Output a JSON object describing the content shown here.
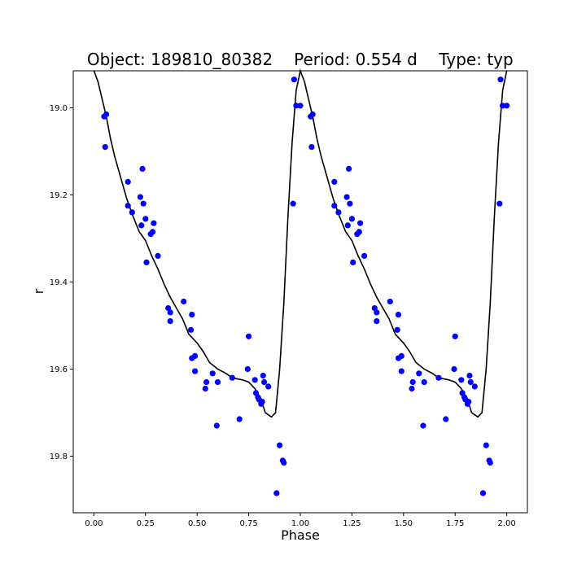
{
  "chart_data": {
    "type": "scatter",
    "title_parts": [
      "Object: 189810_80382",
      "Period: 0.554 d",
      "Type: typ"
    ],
    "xlabel": "Phase",
    "ylabel": "r",
    "xlim": [
      -0.1,
      2.1
    ],
    "ylim": [
      19.93,
      18.915
    ],
    "y_inverted": true,
    "grid": false,
    "x_ticks": [
      0.0,
      0.25,
      0.5,
      0.75,
      1.0,
      1.25,
      1.5,
      1.75,
      2.0
    ],
    "x_tick_labels": [
      "0.00",
      "0.25",
      "0.50",
      "0.75",
      "1.00",
      "1.25",
      "1.50",
      "1.75",
      "2.00"
    ],
    "y_ticks": [
      19.0,
      19.2,
      19.4,
      19.6,
      19.8
    ],
    "y_tick_labels": [
      "19.0",
      "19.2",
      "19.4",
      "19.6",
      "19.8"
    ],
    "series": [
      {
        "type": "scatter",
        "color": "#0000ff",
        "points": [
          [
            0.05,
            19.02
          ],
          [
            0.06,
            19.015
          ],
          [
            0.055,
            19.09
          ],
          [
            0.165,
            19.17
          ],
          [
            0.165,
            19.225
          ],
          [
            0.185,
            19.24
          ],
          [
            0.225,
            19.205
          ],
          [
            0.235,
            19.14
          ],
          [
            0.24,
            19.22
          ],
          [
            0.23,
            19.27
          ],
          [
            0.25,
            19.255
          ],
          [
            0.255,
            19.355
          ],
          [
            0.275,
            19.29
          ],
          [
            0.285,
            19.285
          ],
          [
            0.29,
            19.265
          ],
          [
            0.31,
            19.34
          ],
          [
            0.36,
            19.46
          ],
          [
            0.37,
            19.47
          ],
          [
            0.37,
            19.49
          ],
          [
            0.435,
            19.445
          ],
          [
            0.47,
            19.51
          ],
          [
            0.475,
            19.475
          ],
          [
            0.475,
            19.575
          ],
          [
            0.49,
            19.57
          ],
          [
            0.49,
            19.605
          ],
          [
            0.54,
            19.645
          ],
          [
            0.545,
            19.63
          ],
          [
            0.575,
            19.61
          ],
          [
            0.595,
            19.73
          ],
          [
            0.6,
            19.63
          ],
          [
            0.67,
            19.62
          ],
          [
            0.705,
            19.715
          ],
          [
            0.745,
            19.6
          ],
          [
            0.75,
            19.525
          ],
          [
            0.78,
            19.625
          ],
          [
            0.785,
            19.655
          ],
          [
            0.795,
            19.665
          ],
          [
            0.8,
            19.67
          ],
          [
            0.81,
            19.68
          ],
          [
            0.815,
            19.675
          ],
          [
            0.82,
            19.615
          ],
          [
            0.825,
            19.63
          ],
          [
            0.845,
            19.64
          ],
          [
            0.885,
            19.885
          ],
          [
            0.9,
            19.775
          ],
          [
            0.915,
            19.81
          ],
          [
            0.92,
            19.815
          ],
          [
            0.965,
            19.22
          ],
          [
            0.97,
            18.935
          ],
          [
            0.98,
            18.995
          ],
          [
            1.0,
            18.995
          ],
          [
            1.05,
            19.02
          ],
          [
            1.06,
            19.015
          ],
          [
            1.055,
            19.09
          ],
          [
            1.165,
            19.17
          ],
          [
            1.165,
            19.225
          ],
          [
            1.185,
            19.24
          ],
          [
            1.225,
            19.205
          ],
          [
            1.235,
            19.14
          ],
          [
            1.24,
            19.22
          ],
          [
            1.23,
            19.27
          ],
          [
            1.25,
            19.255
          ],
          [
            1.255,
            19.355
          ],
          [
            1.275,
            19.29
          ],
          [
            1.285,
            19.285
          ],
          [
            1.29,
            19.265
          ],
          [
            1.31,
            19.34
          ],
          [
            1.36,
            19.46
          ],
          [
            1.37,
            19.47
          ],
          [
            1.37,
            19.49
          ],
          [
            1.435,
            19.445
          ],
          [
            1.47,
            19.51
          ],
          [
            1.475,
            19.475
          ],
          [
            1.475,
            19.575
          ],
          [
            1.49,
            19.57
          ],
          [
            1.49,
            19.605
          ],
          [
            1.54,
            19.645
          ],
          [
            1.545,
            19.63
          ],
          [
            1.575,
            19.61
          ],
          [
            1.595,
            19.73
          ],
          [
            1.6,
            19.63
          ],
          [
            1.67,
            19.62
          ],
          [
            1.705,
            19.715
          ],
          [
            1.745,
            19.6
          ],
          [
            1.75,
            19.525
          ],
          [
            1.78,
            19.625
          ],
          [
            1.785,
            19.655
          ],
          [
            1.795,
            19.665
          ],
          [
            1.8,
            19.67
          ],
          [
            1.81,
            19.68
          ],
          [
            1.815,
            19.675
          ],
          [
            1.82,
            19.615
          ],
          [
            1.825,
            19.63
          ],
          [
            1.845,
            19.64
          ],
          [
            1.885,
            19.885
          ],
          [
            1.9,
            19.775
          ],
          [
            1.915,
            19.81
          ],
          [
            1.92,
            19.815
          ],
          [
            1.965,
            19.22
          ],
          [
            1.97,
            18.935
          ],
          [
            1.98,
            18.995
          ],
          [
            2.0,
            18.995
          ]
        ]
      },
      {
        "type": "line",
        "color": "#000000",
        "points": [
          [
            0.0,
            18.915
          ],
          [
            0.02,
            18.94
          ],
          [
            0.04,
            18.98
          ],
          [
            0.06,
            19.02
          ],
          [
            0.08,
            19.07
          ],
          [
            0.1,
            19.11
          ],
          [
            0.13,
            19.16
          ],
          [
            0.16,
            19.21
          ],
          [
            0.19,
            19.25
          ],
          [
            0.22,
            19.285
          ],
          [
            0.25,
            19.305
          ],
          [
            0.28,
            19.34
          ],
          [
            0.31,
            19.37
          ],
          [
            0.34,
            19.405
          ],
          [
            0.37,
            19.435
          ],
          [
            0.4,
            19.46
          ],
          [
            0.43,
            19.485
          ],
          [
            0.46,
            19.52
          ],
          [
            0.5,
            19.54
          ],
          [
            0.53,
            19.56
          ],
          [
            0.56,
            19.585
          ],
          [
            0.6,
            19.6
          ],
          [
            0.64,
            19.61
          ],
          [
            0.67,
            19.62
          ],
          [
            0.72,
            19.625
          ],
          [
            0.75,
            19.63
          ],
          [
            0.78,
            19.645
          ],
          [
            0.81,
            19.67
          ],
          [
            0.83,
            19.7
          ],
          [
            0.86,
            19.71
          ],
          [
            0.88,
            19.7
          ],
          [
            0.9,
            19.6
          ],
          [
            0.92,
            19.45
          ],
          [
            0.94,
            19.25
          ],
          [
            0.96,
            19.08
          ],
          [
            0.98,
            18.96
          ],
          [
            1.0,
            18.915
          ],
          [
            1.02,
            18.94
          ],
          [
            1.04,
            18.98
          ],
          [
            1.06,
            19.02
          ],
          [
            1.08,
            19.07
          ],
          [
            1.1,
            19.11
          ],
          [
            1.13,
            19.16
          ],
          [
            1.16,
            19.21
          ],
          [
            1.19,
            19.25
          ],
          [
            1.22,
            19.285
          ],
          [
            1.25,
            19.305
          ],
          [
            1.28,
            19.34
          ],
          [
            1.31,
            19.37
          ],
          [
            1.34,
            19.405
          ],
          [
            1.37,
            19.435
          ],
          [
            1.4,
            19.46
          ],
          [
            1.43,
            19.485
          ],
          [
            1.46,
            19.52
          ],
          [
            1.5,
            19.54
          ],
          [
            1.53,
            19.56
          ],
          [
            1.56,
            19.585
          ],
          [
            1.6,
            19.6
          ],
          [
            1.64,
            19.61
          ],
          [
            1.67,
            19.62
          ],
          [
            1.72,
            19.625
          ],
          [
            1.75,
            19.63
          ],
          [
            1.78,
            19.645
          ],
          [
            1.81,
            19.67
          ],
          [
            1.83,
            19.7
          ],
          [
            1.86,
            19.71
          ],
          [
            1.88,
            19.7
          ],
          [
            1.9,
            19.6
          ],
          [
            1.92,
            19.45
          ],
          [
            1.94,
            19.25
          ],
          [
            1.96,
            19.08
          ],
          [
            1.98,
            18.96
          ],
          [
            2.0,
            18.915
          ]
        ]
      }
    ]
  }
}
